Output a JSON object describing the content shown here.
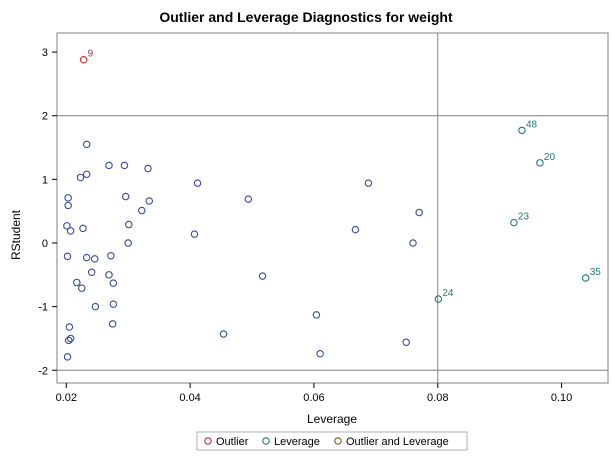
{
  "chart_data": {
    "type": "scatter",
    "title": "Outlier and Leverage Diagnostics for weight",
    "xlabel": "Leverage",
    "ylabel": "RStudent",
    "xlim": [
      0.0185,
      0.1075
    ],
    "ylim": [
      -2.2,
      3.3
    ],
    "xticks": [
      "0.02",
      "0.04",
      "0.06",
      "0.08",
      "0.10"
    ],
    "yticks": [
      "-2",
      "-1",
      "0",
      "1",
      "2",
      "3"
    ],
    "reference_lines": {
      "x": [
        0.08
      ],
      "y": [
        2,
        -2
      ]
    },
    "colors": {
      "none": "#3b4a9c",
      "outlier": "#b83232",
      "leverage": "#1f7a72",
      "both": "#7a5c10"
    },
    "legend": [
      {
        "label": "Outlier",
        "color": "#b83232"
      },
      {
        "label": "Leverage",
        "color": "#1f7a72"
      },
      {
        "label": "Outlier and Leverage",
        "color": "#7a5c10"
      }
    ],
    "points": [
      {
        "x": 0.0228,
        "y": 2.88,
        "group": "outlier",
        "label": "9"
      },
      {
        "x": 0.0936,
        "y": 1.77,
        "group": "leverage",
        "label": "48"
      },
      {
        "x": 0.0965,
        "y": 1.26,
        "group": "leverage",
        "label": "20"
      },
      {
        "x": 0.0923,
        "y": 0.32,
        "group": "leverage",
        "label": "23"
      },
      {
        "x": 0.1039,
        "y": -0.55,
        "group": "leverage",
        "label": "35"
      },
      {
        "x": 0.0801,
        "y": -0.88,
        "group": "leverage",
        "label": "24"
      },
      {
        "x": 0.0233,
        "y": 1.55,
        "group": "none"
      },
      {
        "x": 0.0233,
        "y": 1.08,
        "group": "none"
      },
      {
        "x": 0.0223,
        "y": 1.03,
        "group": "none"
      },
      {
        "x": 0.0269,
        "y": 1.22,
        "group": "none"
      },
      {
        "x": 0.0294,
        "y": 1.22,
        "group": "none"
      },
      {
        "x": 0.0332,
        "y": 1.17,
        "group": "none"
      },
      {
        "x": 0.0412,
        "y": 0.94,
        "group": "none"
      },
      {
        "x": 0.0688,
        "y": 0.94,
        "group": "none"
      },
      {
        "x": 0.0203,
        "y": 0.71,
        "group": "none"
      },
      {
        "x": 0.0203,
        "y": 0.59,
        "group": "none"
      },
      {
        "x": 0.0296,
        "y": 0.73,
        "group": "none"
      },
      {
        "x": 0.0334,
        "y": 0.66,
        "group": "none"
      },
      {
        "x": 0.0494,
        "y": 0.69,
        "group": "none"
      },
      {
        "x": 0.077,
        "y": 0.48,
        "group": "none"
      },
      {
        "x": 0.0322,
        "y": 0.51,
        "group": "none"
      },
      {
        "x": 0.0301,
        "y": 0.29,
        "group": "none"
      },
      {
        "x": 0.0201,
        "y": 0.27,
        "group": "none"
      },
      {
        "x": 0.0207,
        "y": 0.19,
        "group": "none"
      },
      {
        "x": 0.0227,
        "y": 0.23,
        "group": "none"
      },
      {
        "x": 0.0407,
        "y": 0.14,
        "group": "none"
      },
      {
        "x": 0.0667,
        "y": 0.21,
        "group": "none"
      },
      {
        "x": 0.03,
        "y": 0.0,
        "group": "none"
      },
      {
        "x": 0.076,
        "y": 0.0,
        "group": "none"
      },
      {
        "x": 0.0202,
        "y": -0.21,
        "group": "none"
      },
      {
        "x": 0.0233,
        "y": -0.23,
        "group": "none"
      },
      {
        "x": 0.0246,
        "y": -0.25,
        "group": "none"
      },
      {
        "x": 0.0272,
        "y": -0.2,
        "group": "none"
      },
      {
        "x": 0.0241,
        "y": -0.46,
        "group": "none"
      },
      {
        "x": 0.0269,
        "y": -0.5,
        "group": "none"
      },
      {
        "x": 0.0217,
        "y": -0.62,
        "group": "none"
      },
      {
        "x": 0.0225,
        "y": -0.71,
        "group": "none"
      },
      {
        "x": 0.0276,
        "y": -0.63,
        "group": "none"
      },
      {
        "x": 0.0517,
        "y": -0.52,
        "group": "none"
      },
      {
        "x": 0.0276,
        "y": -0.96,
        "group": "none"
      },
      {
        "x": 0.0247,
        "y": -1.0,
        "group": "none"
      },
      {
        "x": 0.0604,
        "y": -1.13,
        "group": "none"
      },
      {
        "x": 0.0275,
        "y": -1.27,
        "group": "none"
      },
      {
        "x": 0.0205,
        "y": -1.32,
        "group": "none"
      },
      {
        "x": 0.0454,
        "y": -1.43,
        "group": "none"
      },
      {
        "x": 0.0207,
        "y": -1.5,
        "group": "none"
      },
      {
        "x": 0.0204,
        "y": -1.53,
        "group": "none"
      },
      {
        "x": 0.0749,
        "y": -1.56,
        "group": "none"
      },
      {
        "x": 0.061,
        "y": -1.74,
        "group": "none"
      },
      {
        "x": 0.0202,
        "y": -1.79,
        "group": "none"
      }
    ]
  }
}
